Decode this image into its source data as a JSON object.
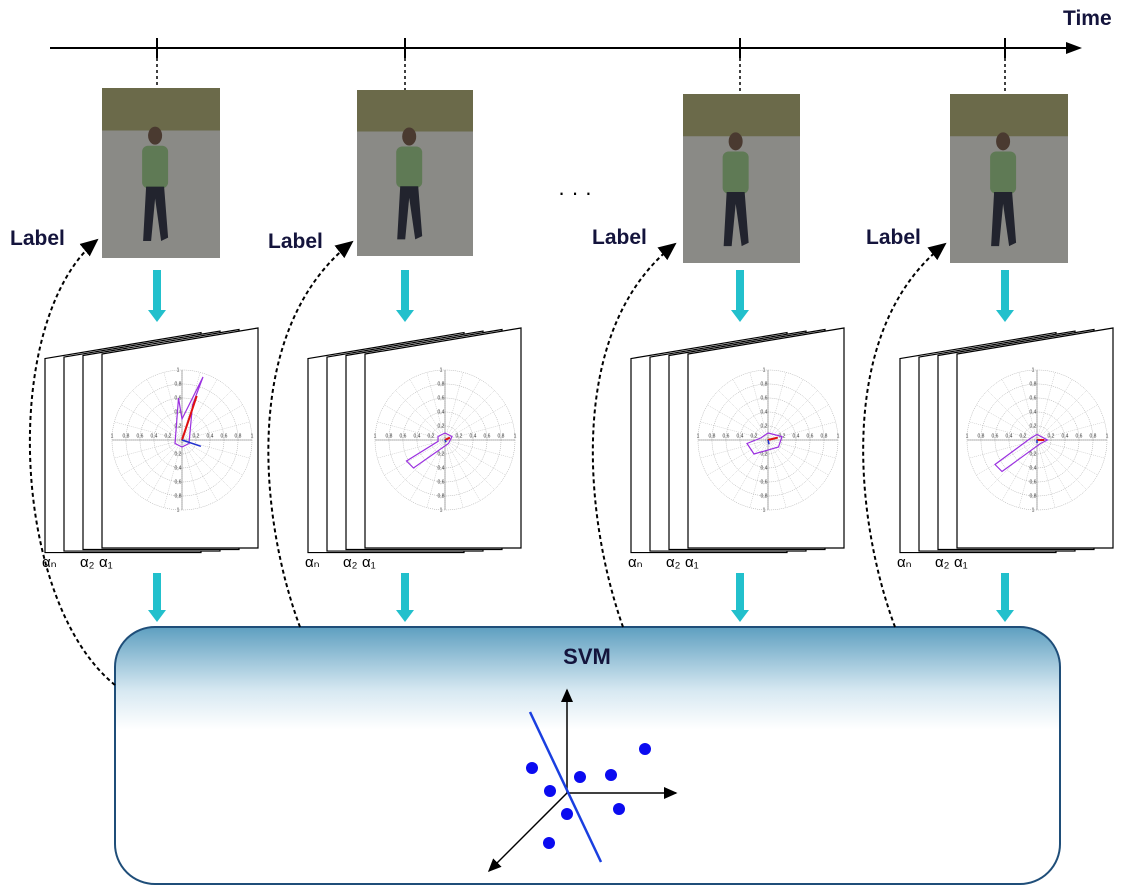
{
  "timeline": {
    "label": "Time"
  },
  "ellipsis": "· · ·",
  "polar_tick_labels": [
    "0,2",
    "0,4",
    "0,6",
    "0,8",
    "1"
  ],
  "frames": [
    {
      "label": "Label",
      "alpha_labels": [
        "αₙ",
        "α₂",
        "α₁"
      ]
    },
    {
      "label": "Label",
      "alpha_labels": [
        "αₙ",
        "α₂",
        "α₁"
      ]
    },
    {
      "label": "Label",
      "alpha_labels": [
        "αₙ",
        "α₂",
        "α₁"
      ]
    },
    {
      "label": "Label",
      "alpha_labels": [
        "αₙ",
        "α₂",
        "α₁"
      ]
    }
  ],
  "svm": {
    "title": "SVM"
  }
}
